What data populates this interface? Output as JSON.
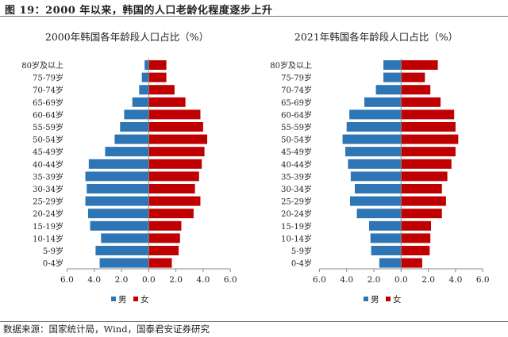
{
  "figure_title": "图 19：2000 年以来，韩国的人口老龄化程度逐步上升",
  "source": "数据来源：国家统计局，Wind，国泰君安证券研究",
  "colors": {
    "male": "#2e75b6",
    "female": "#c00000"
  },
  "chart_data": [
    {
      "type": "bar",
      "orientation": "horizontal-pyramid",
      "title": "2000年韩国各年龄段人口占比（%）",
      "categories": [
        "80岁及以上",
        "75-79岁",
        "70-74岁",
        "65-69岁",
        "60-64岁",
        "55-59岁",
        "50-54岁",
        "45-49岁",
        "40-44岁",
        "35-39岁",
        "30-34岁",
        "25-29岁",
        "20-24岁",
        "15-19岁",
        "10-14岁",
        "5-9岁",
        "0-4岁"
      ],
      "series": [
        {
          "name": "男",
          "values": [
            0.3,
            0.5,
            0.7,
            1.2,
            1.8,
            2.1,
            2.5,
            3.2,
            4.4,
            4.65,
            4.55,
            4.65,
            4.45,
            4.3,
            3.5,
            3.9,
            3.6
          ]
        },
        {
          "name": "女",
          "values": [
            1.3,
            1.3,
            1.9,
            2.7,
            3.8,
            4.0,
            4.3,
            4.1,
            3.9,
            3.7,
            3.4,
            3.8,
            3.3,
            2.4,
            2.3,
            2.2,
            1.7
          ]
        }
      ],
      "xlim": [
        -6,
        6
      ],
      "xticks": [
        "6.0",
        "4.0",
        "2.0",
        "0.0",
        "2.0",
        "4.0",
        "6.0"
      ],
      "legend": "bottom",
      "grid": false
    },
    {
      "type": "bar",
      "orientation": "horizontal-pyramid",
      "title": "2021年韩国各年龄段人口占比（%）",
      "categories": [
        "80岁及以上",
        "75-79岁",
        "70-74岁",
        "65-69岁",
        "60-64岁",
        "55-59岁",
        "50-54岁",
        "45-49岁",
        "40-44岁",
        "35-39岁",
        "30-34岁",
        "25-29岁",
        "20-24岁",
        "15-19岁",
        "10-14岁",
        "5-9岁",
        "0-4岁"
      ],
      "series": [
        {
          "name": "男",
          "values": [
            1.3,
            1.3,
            1.85,
            2.7,
            3.8,
            4.0,
            4.3,
            4.1,
            3.9,
            3.7,
            3.4,
            3.75,
            3.25,
            2.35,
            2.25,
            2.2,
            1.6
          ]
        },
        {
          "name": "女",
          "values": [
            2.7,
            1.75,
            2.15,
            2.9,
            3.9,
            4.0,
            4.2,
            4.0,
            3.7,
            3.4,
            3.0,
            3.3,
            3.0,
            2.2,
            2.15,
            2.1,
            1.55
          ]
        }
      ],
      "xlim": [
        -6,
        6
      ],
      "xticks": [
        "6.0",
        "4.0",
        "2.0",
        "0.0",
        "2.0",
        "4.0",
        "6.0"
      ],
      "legend": "bottom",
      "grid": false
    }
  ]
}
